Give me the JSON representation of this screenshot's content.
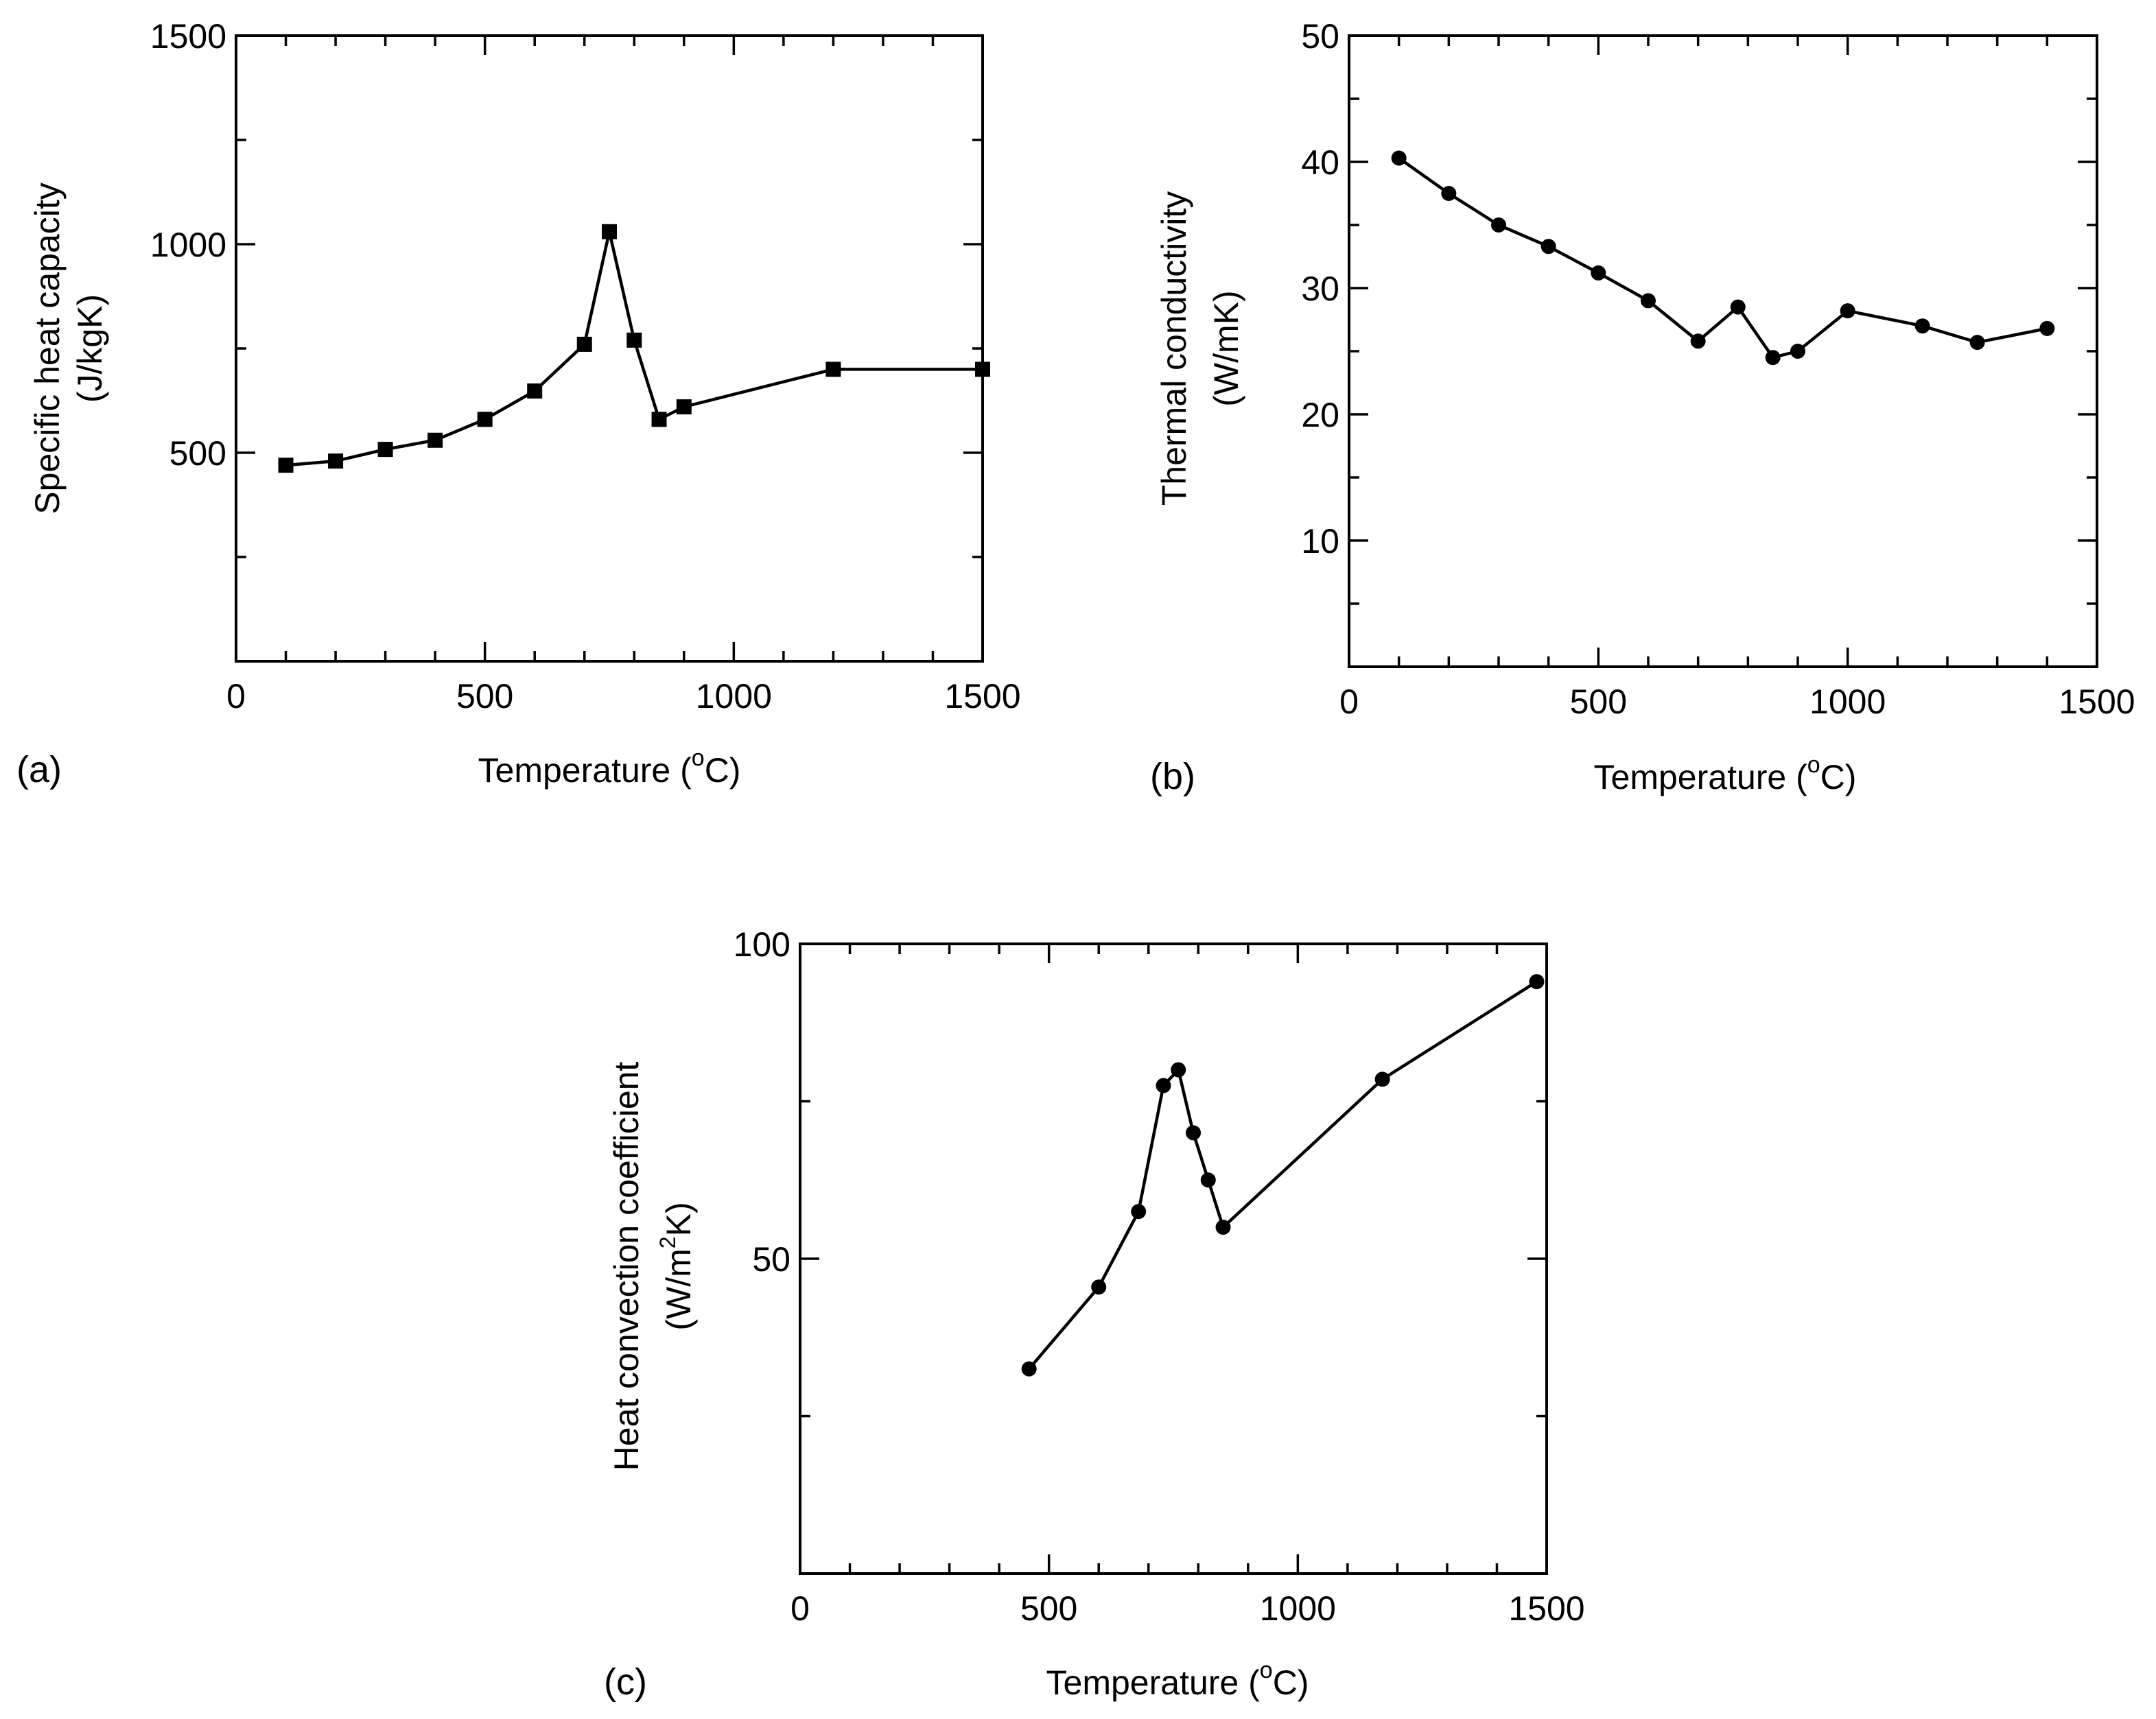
{
  "chart_data": [
    {
      "type": "line",
      "panel_label": "(a)",
      "marker": "square",
      "xlabel": "Temperature (°C)",
      "xlabel_main": "Temperature (",
      "xlabel_deg": "o",
      "xlabel_end": "C)",
      "ylabel": "Specific heat capacity",
      "ylabel_unit": "(J/kgK)",
      "xlim": [
        0,
        1500
      ],
      "ylim": [
        0,
        1500
      ],
      "xticks": [
        0,
        500,
        1000,
        1500
      ],
      "xtick_labels": [
        "0",
        "500",
        "1000",
        "1500"
      ],
      "yticks": [
        500,
        1000,
        1500
      ],
      "ytick_labels": [
        "500",
        "1000",
        "1500"
      ],
      "x": [
        100,
        200,
        300,
        400,
        500,
        600,
        700,
        750,
        800,
        850,
        900,
        1200,
        1500
      ],
      "y": [
        470,
        480,
        508,
        530,
        580,
        648,
        760,
        1030,
        770,
        580,
        610,
        700,
        700
      ]
    },
    {
      "type": "line",
      "panel_label": "(b)",
      "marker": "circle",
      "xlabel": "Temperature (°C)",
      "xlabel_main": "Temperature (",
      "xlabel_deg": "o",
      "xlabel_end": "C)",
      "ylabel": "Thermal conductivity",
      "ylabel_unit": "(W/mK)",
      "xlim": [
        0,
        1500
      ],
      "ylim": [
        0,
        50
      ],
      "xticks": [
        0,
        500,
        1000,
        1500
      ],
      "xtick_labels": [
        "0",
        "500",
        "1000",
        "1500"
      ],
      "yticks": [
        10,
        20,
        30,
        40,
        50
      ],
      "ytick_labels": [
        "10",
        "20",
        "30",
        "40",
        "50"
      ],
      "x": [
        100,
        200,
        300,
        400,
        500,
        600,
        700,
        780,
        850,
        900,
        1000,
        1150,
        1260,
        1400
      ],
      "y": [
        40.3,
        37.5,
        35.0,
        33.3,
        31.2,
        29.0,
        25.8,
        28.5,
        24.5,
        25.0,
        28.2,
        27.0,
        25.7,
        26.8
      ]
    },
    {
      "type": "line",
      "panel_label": "(c)",
      "marker": "circle",
      "xlabel": "Temperature (°C)",
      "xlabel_main": "Temperature (",
      "xlabel_deg": "o",
      "xlabel_end": "C)",
      "ylabel": "Heat convection coefficient",
      "ylabel_unit": "(W/m²K)",
      "ylabel_unit_main": "(W/m",
      "ylabel_unit_sup": "2",
      "ylabel_unit_end": "K)",
      "xlim": [
        0,
        1500
      ],
      "ylim": [
        0,
        100
      ],
      "xticks": [
        0,
        500,
        1000,
        1500
      ],
      "xtick_labels": [
        "0",
        "500",
        "1000",
        "1500"
      ],
      "yticks": [
        50,
        100
      ],
      "ytick_labels": [
        "50",
        "100"
      ],
      "x": [
        460,
        600,
        680,
        730,
        760,
        790,
        820,
        850,
        1170,
        1480
      ],
      "y": [
        32.5,
        45.5,
        57.5,
        77.5,
        80.0,
        70.0,
        62.5,
        55.0,
        78.5,
        94.0
      ]
    }
  ]
}
